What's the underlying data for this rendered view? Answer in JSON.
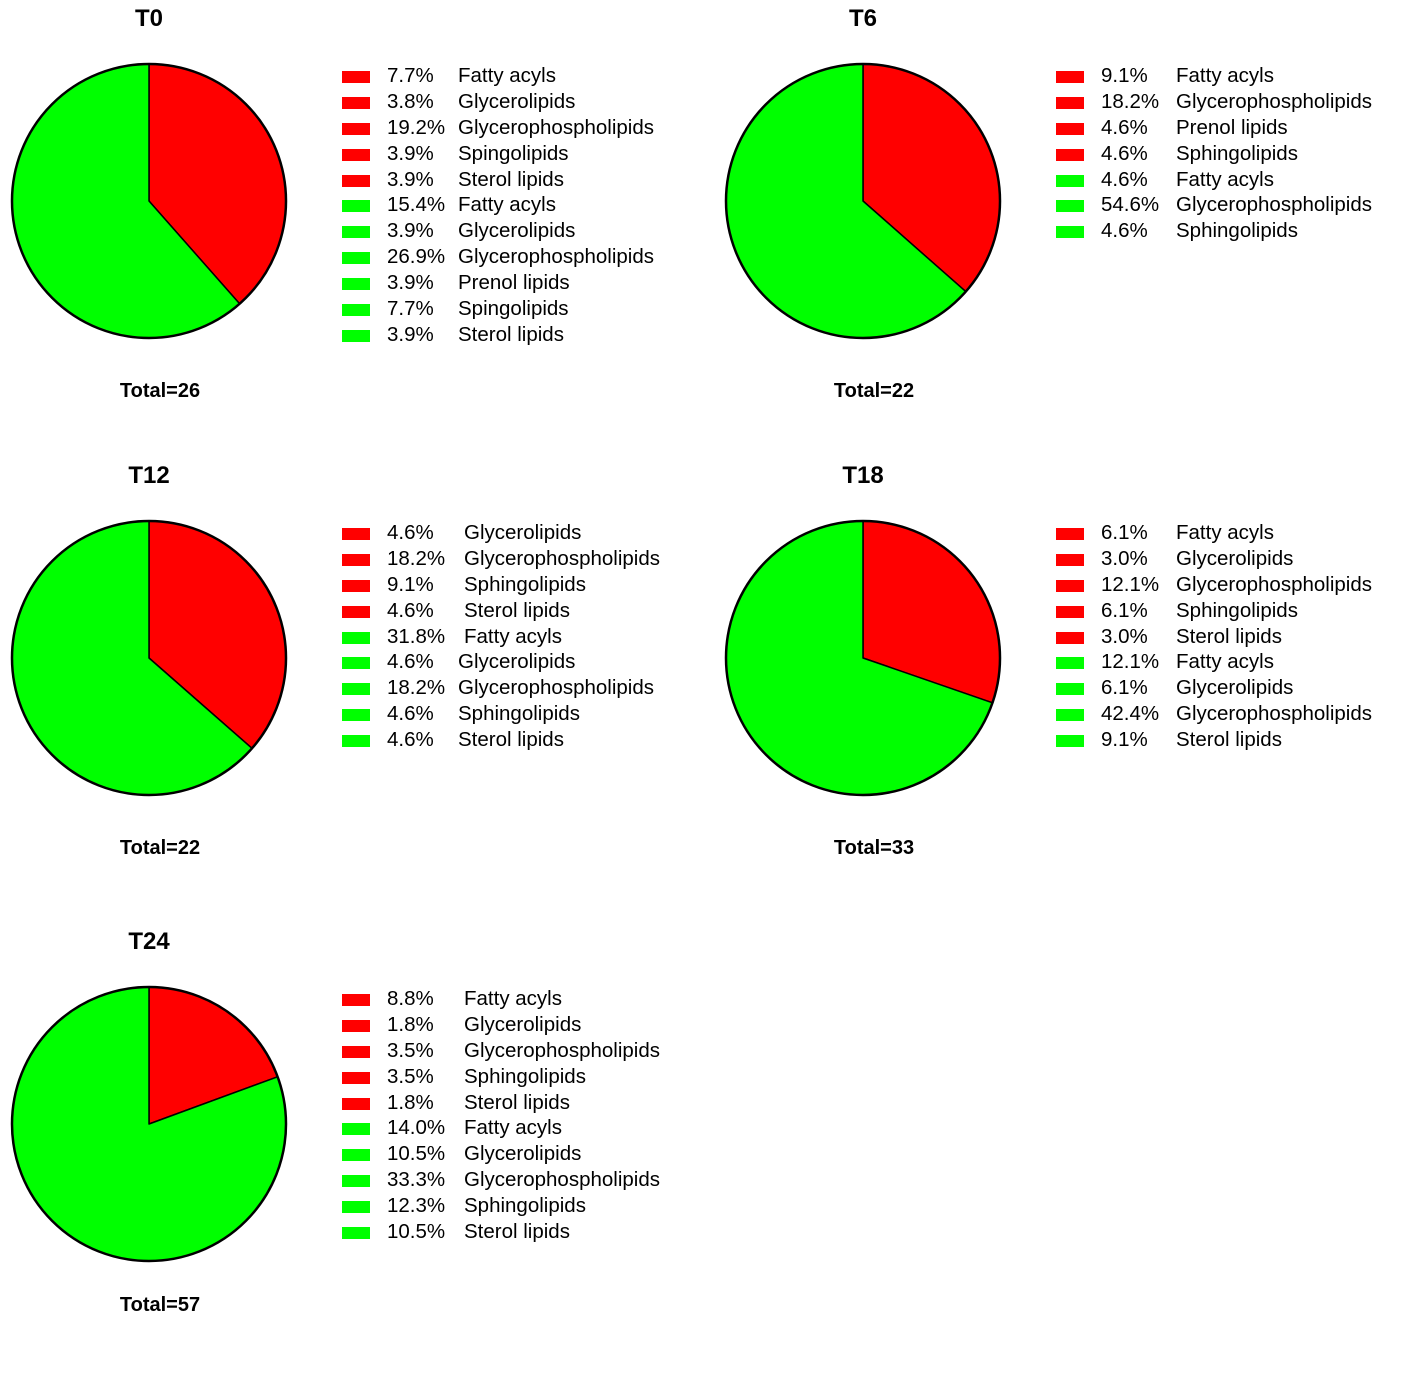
{
  "colors": {
    "increase": "#ff0000",
    "decrease": "#00ff00",
    "outline": "#000000"
  },
  "chart_data": [
    {
      "type": "pie",
      "title": "T0",
      "total_label": "Total=26",
      "slices": [
        {
          "label": "Red",
          "value": 38.5,
          "color": "#ff0000"
        },
        {
          "label": "Green",
          "value": 61.5,
          "color": "#00ff00"
        }
      ],
      "legend": [
        {
          "pct": "7.7%",
          "category": "Fatty acyls",
          "color": "#ff0000"
        },
        {
          "pct": "3.8%",
          "category": "Glycerolipids",
          "color": "#ff0000"
        },
        {
          "pct": "19.2%",
          "category": "Glycerophospholipids",
          "color": "#ff0000"
        },
        {
          "pct": "3.9%",
          "category": "Spingolipids",
          "color": "#ff0000"
        },
        {
          "pct": "3.9%",
          "category": "Sterol lipids",
          "color": "#ff0000"
        },
        {
          "pct": "15.4%",
          "category": "Fatty acyls",
          "color": "#00ff00"
        },
        {
          "pct": "3.9%",
          "category": "Glycerolipids",
          "color": "#00ff00"
        },
        {
          "pct": "26.9%",
          "category": "Glycerophospholipids",
          "color": "#00ff00"
        },
        {
          "pct": "3.9%",
          "category": "Prenol lipids",
          "color": "#00ff00"
        },
        {
          "pct": "7.7%",
          "category": "Spingolipids",
          "color": "#00ff00"
        },
        {
          "pct": "3.9%",
          "category": "Sterol lipids",
          "color": "#00ff00"
        }
      ]
    },
    {
      "type": "pie",
      "title": "T6",
      "total_label": "Total=22",
      "slices": [
        {
          "label": "Red",
          "value": 36.5,
          "color": "#ff0000"
        },
        {
          "label": "Green",
          "value": 63.5,
          "color": "#00ff00"
        }
      ],
      "legend": [
        {
          "pct": "9.1%",
          "category": "Fatty acyls",
          "color": "#ff0000"
        },
        {
          "pct": "18.2%",
          "category": "Glycerophospholipids",
          "color": "#ff0000"
        },
        {
          "pct": "4.6%",
          "category": "Prenol lipids",
          "color": "#ff0000"
        },
        {
          "pct": "4.6%",
          "category": "Sphingolipids",
          "color": "#ff0000"
        },
        {
          "pct": "4.6%",
          "category": "Fatty acyls",
          "color": "#00ff00"
        },
        {
          "pct": "54.6%",
          "category": "Glycerophospholipids",
          "color": "#00ff00"
        },
        {
          "pct": "4.6%",
          "category": "Sphingolipids",
          "color": "#00ff00"
        }
      ]
    },
    {
      "type": "pie",
      "title": "T12",
      "total_label": "Total=22",
      "slices": [
        {
          "label": "Red",
          "value": 36.5,
          "color": "#ff0000"
        },
        {
          "label": "Green",
          "value": 63.6,
          "color": "#00ff00"
        }
      ],
      "legend": [
        {
          "pct": "4.6%",
          "category": "Glycerolipids",
          "color": "#ff0000"
        },
        {
          "pct": "18.2%",
          "category": "Glycerophospholipids",
          "color": "#ff0000"
        },
        {
          "pct": "9.1%",
          "category": "Sphingolipids",
          "color": "#ff0000"
        },
        {
          "pct": "4.6%",
          "category": "Sterol lipids",
          "color": "#ff0000"
        },
        {
          "pct": "31.8%",
          "category": "Fatty acyls",
          "color": "#00ff00"
        },
        {
          "pct": "4.6%",
          "category": "Glycerolipids",
          "color": "#00ff00"
        },
        {
          "pct": "18.2%",
          "category": "Glycerophospholipids",
          "color": "#00ff00"
        },
        {
          "pct": "4.6%",
          "category": "Sphingolipids",
          "color": "#00ff00"
        },
        {
          "pct": "4.6%",
          "category": "Sterol lipids",
          "color": "#00ff00"
        }
      ]
    },
    {
      "type": "pie",
      "title": "T18",
      "total_label": "Total=33",
      "slices": [
        {
          "label": "Red",
          "value": 30.3,
          "color": "#ff0000"
        },
        {
          "label": "Green",
          "value": 69.7,
          "color": "#00ff00"
        }
      ],
      "legend": [
        {
          "pct": "6.1%",
          "category": "Fatty acyls",
          "color": "#ff0000"
        },
        {
          "pct": "3.0%",
          "category": "Glycerolipids",
          "color": "#ff0000"
        },
        {
          "pct": "12.1%",
          "category": "Glycerophospholipids",
          "color": "#ff0000"
        },
        {
          "pct": "6.1%",
          "category": "Sphingolipids",
          "color": "#ff0000"
        },
        {
          "pct": "3.0%",
          "category": "Sterol lipids",
          "color": "#ff0000"
        },
        {
          "pct": "12.1%",
          "category": "Fatty acyls",
          "color": "#00ff00"
        },
        {
          "pct": "6.1%",
          "category": "Glycerolipids",
          "color": "#00ff00"
        },
        {
          "pct": "42.4%",
          "category": "Glycerophospholipids",
          "color": "#00ff00"
        },
        {
          "pct": "9.1%",
          "category": "Sterol lipids",
          "color": "#00ff00"
        }
      ]
    },
    {
      "type": "pie",
      "title": "T24",
      "total_label": "Total=57",
      "slices": [
        {
          "label": "Red",
          "value": 19.4,
          "color": "#ff0000"
        },
        {
          "label": "Green",
          "value": 80.6,
          "color": "#00ff00"
        }
      ],
      "legend": [
        {
          "pct": "8.8%",
          "category": "Fatty acyls",
          "color": "#ff0000"
        },
        {
          "pct": "1.8%",
          "category": "Glycerolipids",
          "color": "#ff0000"
        },
        {
          "pct": "3.5%",
          "category": "Glycerophospholipids",
          "color": "#ff0000"
        },
        {
          "pct": "3.5%",
          "category": "Sphingolipids",
          "color": "#ff0000"
        },
        {
          "pct": "1.8%",
          "category": "Sterol lipids",
          "color": "#ff0000"
        },
        {
          "pct": "14.0%",
          "category": "Fatty acyls",
          "color": "#00ff00"
        },
        {
          "pct": "10.5%",
          "category": "Glycerolipids",
          "color": "#00ff00"
        },
        {
          "pct": "33.3%",
          "category": "Glycerophospholipids",
          "color": "#00ff00"
        },
        {
          "pct": "12.3%",
          "category": "Sphingolipids",
          "color": "#00ff00"
        },
        {
          "pct": "10.5%",
          "category": "Sterol lipids",
          "color": "#00ff00"
        }
      ]
    }
  ]
}
